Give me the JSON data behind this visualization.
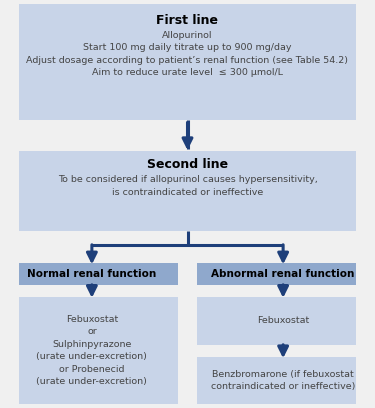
{
  "bg_color": "#f0f0f0",
  "box_light": "#c8d4e8",
  "box_medium": "#8fa8cc",
  "arrow_color": "#1e3f7a",
  "title_color": "#000000",
  "body_color": "#444444",
  "first_line_title": "First line",
  "first_line_body": "Allopurinol\nStart 100 mg daily titrate up to 900 mg/day\nAdjust dosage according to patient’s renal function (see Table 54.2)\nAim to reduce urate level  ≤ 300 μmol/L",
  "second_line_title": "Second line",
  "second_line_body": "To be considered if allopurinol causes hypersensitivity,\nis contraindicated or ineffective",
  "left_header": "Normal renal function",
  "right_header": "Abnormal renal function",
  "left_body": "Febuxostat\nor\nSulphinpyrazone\n(urate under-excretion)\nor Probenecid\n(urate under-excretion)",
  "right_body": "Febuxostat",
  "right_body2": "Benzbromarone (if febuxostat\ncontraindicated or ineffective)",
  "fig_w": 3.75,
  "fig_h": 4.08,
  "dpi": 100
}
